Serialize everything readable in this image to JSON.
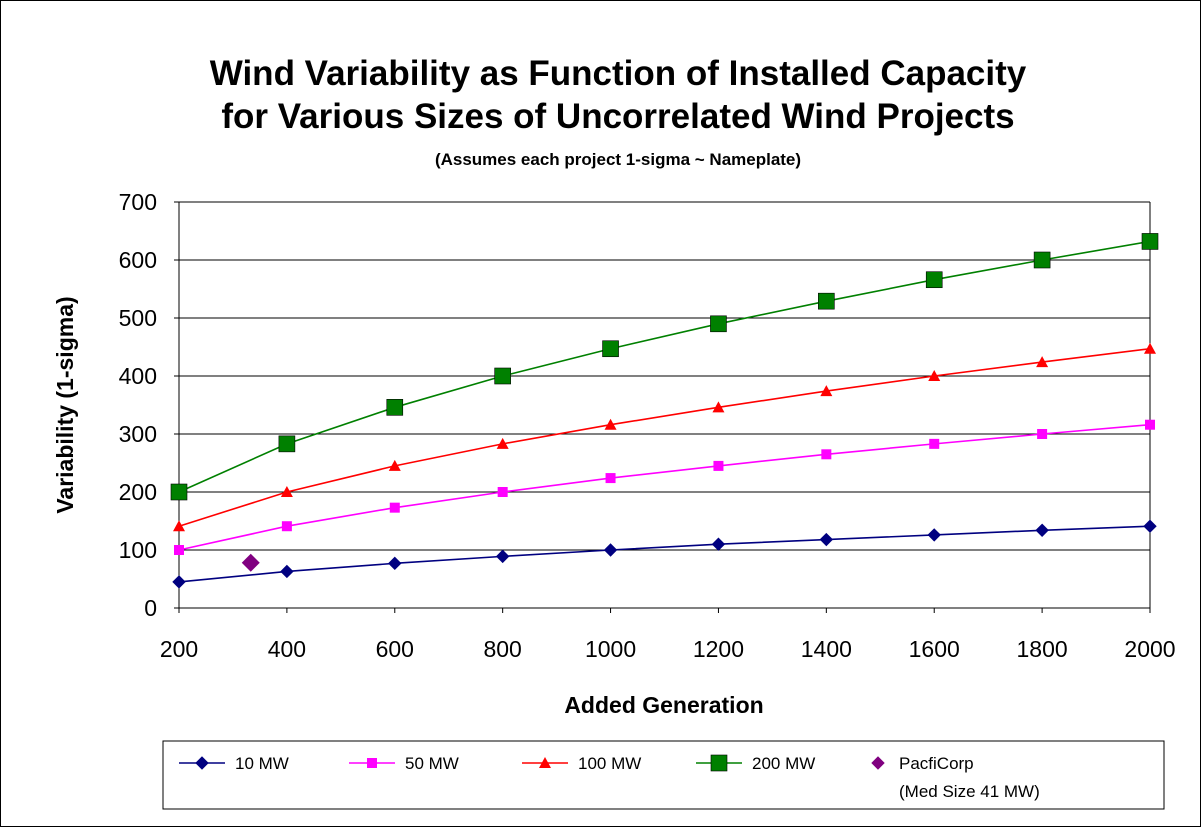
{
  "chart_data": {
    "type": "line",
    "title_line1": "Wind Variability as Function of Installed Capacity",
    "title_line2": "for Various Sizes of Uncorrelated Wind Projects",
    "subtitle": "(Assumes each project 1-sigma ~ Nameplate)",
    "xlabel": "Added Generation",
    "ylabel": "Variability (1-sigma)",
    "xlim": [
      200,
      2000
    ],
    "ylim": [
      0,
      700
    ],
    "xticks": [
      200,
      400,
      600,
      800,
      1000,
      1200,
      1400,
      1600,
      1800,
      2000
    ],
    "yticks": [
      0,
      100,
      200,
      300,
      400,
      500,
      600,
      700
    ],
    "grid": "horizontal",
    "legend_placement": "bottom",
    "series": [
      {
        "name": "10 MW",
        "color": "#000080",
        "marker": "diamond",
        "x": [
          200,
          400,
          600,
          800,
          1000,
          1200,
          1400,
          1600,
          1800,
          2000
        ],
        "values": [
          45,
          63,
          77,
          89,
          100,
          110,
          118,
          126,
          134,
          141
        ]
      },
      {
        "name": "50 MW",
        "color": "#FF00FF",
        "marker": "square",
        "x": [
          200,
          400,
          600,
          800,
          1000,
          1200,
          1400,
          1600,
          1800,
          2000
        ],
        "values": [
          100,
          141,
          173,
          200,
          224,
          245,
          265,
          283,
          300,
          316
        ]
      },
      {
        "name": "100 MW",
        "color": "#FF0000",
        "marker": "triangle",
        "x": [
          200,
          400,
          600,
          800,
          1000,
          1200,
          1400,
          1600,
          1800,
          2000
        ],
        "values": [
          141,
          200,
          245,
          283,
          316,
          346,
          374,
          400,
          424,
          447
        ]
      },
      {
        "name": "200 MW",
        "color": "#008000",
        "marker": "big-square",
        "x": [
          200,
          400,
          600,
          800,
          1000,
          1200,
          1400,
          1600,
          1800,
          2000
        ],
        "values": [
          200,
          283,
          346,
          400,
          447,
          490,
          529,
          566,
          600,
          632
        ]
      }
    ],
    "points": [
      {
        "name_line1": "PacfiCorp",
        "name_line2": "(Med Size 41 MW)",
        "color": "#800080",
        "marker": "diamond",
        "x": 333,
        "y": 78
      }
    ]
  }
}
